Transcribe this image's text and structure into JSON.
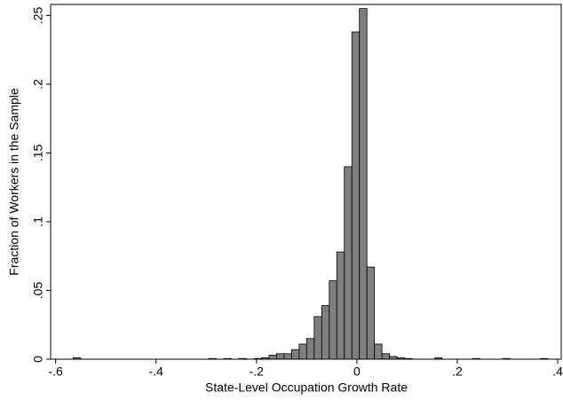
{
  "chart_data": {
    "type": "histogram",
    "x_label": "State-Level Occupation Growth Rate",
    "y_label": "Fraction of Workers in the Sample",
    "bins": [
      -0.565,
      -0.55,
      -0.535,
      -0.52,
      -0.505,
      -0.49,
      -0.475,
      -0.46,
      -0.445,
      -0.43,
      -0.415,
      -0.4,
      -0.385,
      -0.37,
      -0.355,
      -0.34,
      -0.325,
      -0.31,
      -0.295,
      -0.28,
      -0.265,
      -0.25,
      -0.235,
      -0.22,
      -0.205,
      -0.19,
      -0.175,
      -0.16,
      -0.145,
      -0.13,
      -0.115,
      -0.1,
      -0.085,
      -0.07,
      -0.055,
      -0.04,
      -0.025,
      -0.01,
      0.005,
      0.02,
      0.035,
      0.05,
      0.065,
      0.08,
      0.095,
      0.11,
      0.125,
      0.14,
      0.155,
      0.17,
      0.185,
      0.2,
      0.215,
      0.23,
      0.245,
      0.26,
      0.275,
      0.29,
      0.305,
      0.32,
      0.335,
      0.35,
      0.365,
      0.38
    ],
    "values": [
      0.001,
      0,
      0,
      0,
      0,
      0,
      0,
      0,
      0,
      0,
      0,
      0,
      0,
      0,
      0,
      0,
      0,
      0,
      0.0005,
      0,
      0.0005,
      0,
      0.0005,
      0,
      0.0005,
      0.001,
      0.003,
      0.004,
      0.004,
      0.007,
      0.011,
      0.015,
      0.031,
      0.039,
      0.057,
      0.078,
      0.14,
      0.238,
      0.255,
      0.067,
      0.011,
      0.004,
      0.002,
      0.001,
      0.0005,
      0,
      0,
      0,
      0.001,
      0,
      0,
      0,
      0,
      0.0005,
      0,
      0,
      0,
      0.0005,
      0,
      0,
      0,
      0,
      0.0005
    ],
    "color": "#7f7f7f",
    "xlim": [
      -0.61,
      0.407
    ],
    "ylim": [
      0,
      0.258
    ],
    "xticks": [
      {
        "value": -0.6,
        "label": "-.6"
      },
      {
        "value": -0.4,
        "label": "-.4"
      },
      {
        "value": -0.2,
        "label": "-.2"
      },
      0,
      {
        "value": 0.2,
        "label": ".2"
      },
      {
        "value": 0.4,
        "label": ".4"
      }
    ],
    "yticks": [
      0,
      {
        "value": 0.05,
        "label": ".05"
      },
      {
        "value": 0.1,
        "label": ".1"
      },
      {
        "value": 0.15,
        "label": ".15"
      },
      {
        "value": 0.2,
        "label": ".2"
      },
      {
        "value": 0.25,
        "label": ".25"
      }
    ]
  }
}
